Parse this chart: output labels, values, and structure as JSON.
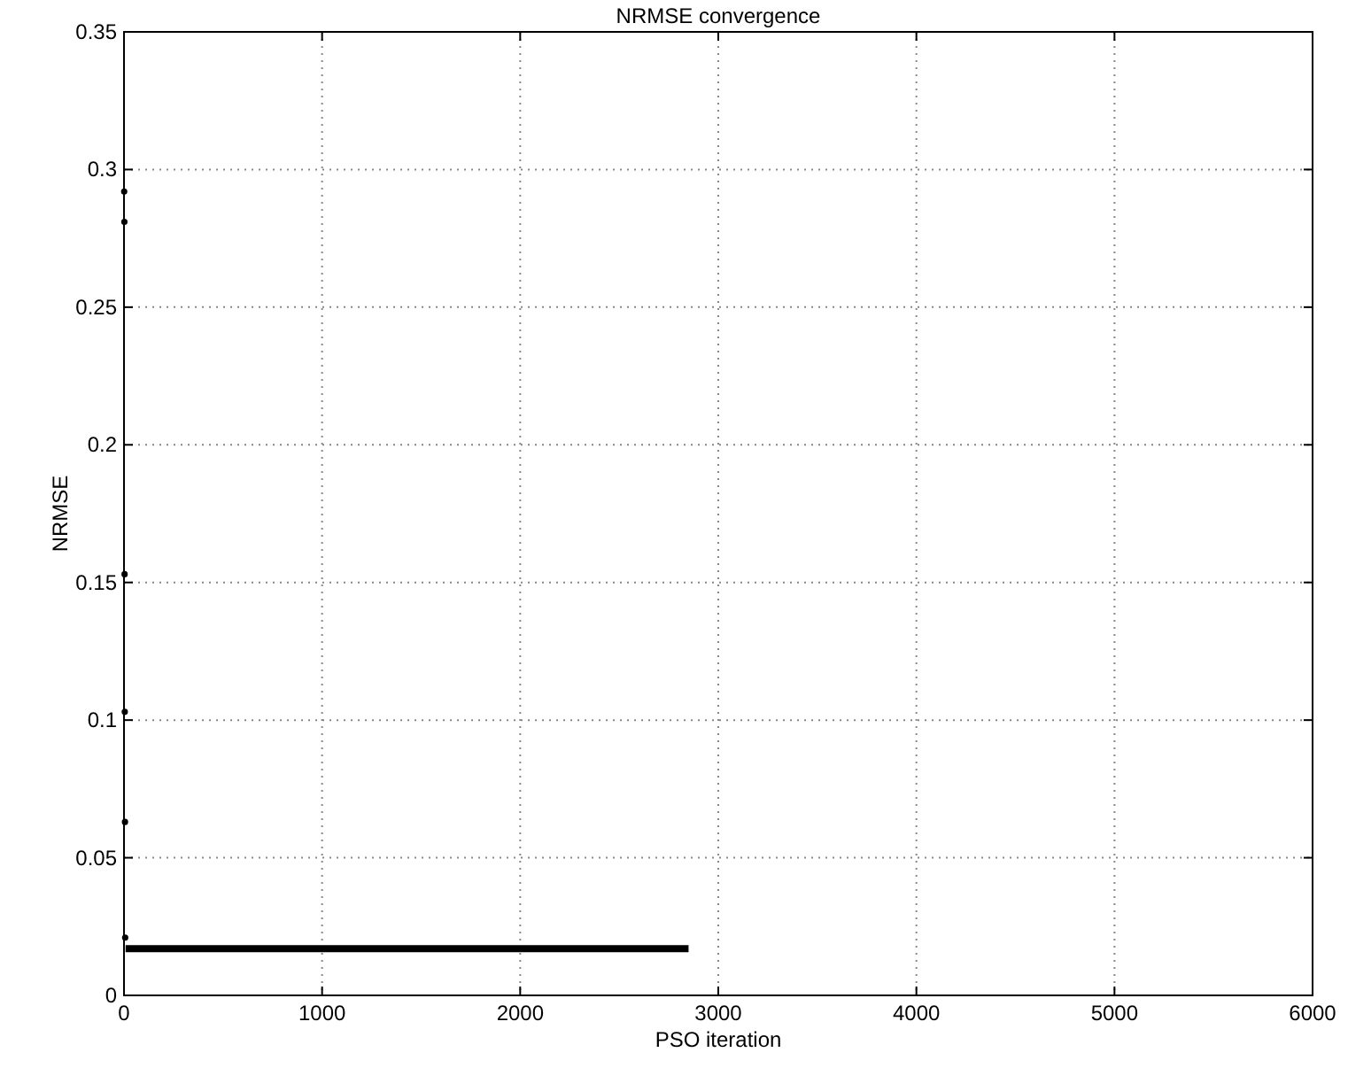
{
  "chart_data": {
    "type": "scatter",
    "title": "NRMSE convergence",
    "xlabel": "PSO iteration",
    "ylabel": "NRMSE",
    "xlim": [
      0,
      6000
    ],
    "xticks": [
      0,
      1000,
      2000,
      3000,
      4000,
      5000,
      6000
    ],
    "ylim": [
      0,
      0.35
    ],
    "yticks": [
      0,
      0.05,
      0.1,
      0.15,
      0.2,
      0.25,
      0.3,
      0.35
    ],
    "grid": true,
    "series": [
      {
        "color": "#000000",
        "marker": "circle",
        "x": [
          1,
          2,
          3,
          4,
          5,
          6
        ],
        "values": [
          0.292,
          0.281,
          0.153,
          0.103,
          0.063,
          0.021
        ]
      },
      {
        "type": "line",
        "marker": "none",
        "color": "#000000",
        "x": [
          8,
          2850
        ],
        "values": [
          0.017,
          0.017
        ]
      }
    ]
  }
}
